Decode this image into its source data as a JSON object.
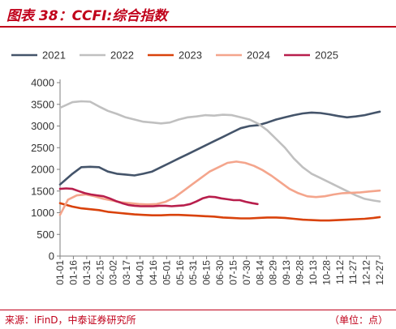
{
  "header": {
    "title": "图表 38：CCFI:综合指数"
  },
  "footer": {
    "source": "来源：iFinD，中泰证券研究所",
    "unit": "（单位：点）"
  },
  "chart_data": {
    "type": "line",
    "title": "CCFI:综合指数",
    "ylim": [
      0,
      4000
    ],
    "yticks": [
      0,
      500,
      1000,
      1500,
      2000,
      2500,
      3000,
      3500,
      4000
    ],
    "x_tick_labels": [
      "01-01",
      "01-16",
      "01-31",
      "02-15",
      "03-02",
      "03-17",
      "04-01",
      "04-16",
      "05-01",
      "05-16",
      "05-31",
      "06-15",
      "06-30",
      "07-15",
      "07-30",
      "08-14",
      "08-29",
      "09-13",
      "09-28",
      "10-13",
      "10-28",
      "11-12",
      "11-27",
      "12-12",
      "12-27"
    ],
    "x_unit": "day of year (1 = Jan 1)",
    "grid": false,
    "legend_position": "top",
    "series": [
      {
        "name": "2021",
        "color": "#44546a",
        "x": [
          1,
          15,
          25,
          35,
          45,
          55,
          65,
          75,
          85,
          95,
          105,
          115,
          125,
          135,
          145,
          155,
          165,
          175,
          185,
          195,
          205,
          215,
          225,
          235,
          245,
          255,
          265,
          275,
          285,
          295,
          305,
          315,
          325,
          335,
          345,
          355,
          362
        ],
        "y": [
          1650,
          1900,
          2050,
          2060,
          2050,
          1950,
          1900,
          1880,
          1860,
          1900,
          1950,
          2050,
          2150,
          2250,
          2350,
          2450,
          2550,
          2650,
          2750,
          2850,
          2950,
          3000,
          3020,
          3080,
          3150,
          3200,
          3250,
          3290,
          3310,
          3300,
          3270,
          3230,
          3200,
          3220,
          3250,
          3300,
          3330
        ]
      },
      {
        "name": "2022",
        "color": "#c0c0c0",
        "x": [
          1,
          15,
          25,
          35,
          45,
          55,
          65,
          75,
          85,
          95,
          105,
          115,
          125,
          135,
          145,
          155,
          165,
          175,
          185,
          195,
          205,
          215,
          225,
          235,
          245,
          255,
          265,
          275,
          285,
          295,
          305,
          315,
          325,
          335,
          345,
          355,
          362
        ],
        "y": [
          3420,
          3550,
          3570,
          3560,
          3450,
          3350,
          3280,
          3200,
          3150,
          3100,
          3080,
          3060,
          3080,
          3150,
          3200,
          3220,
          3250,
          3240,
          3260,
          3250,
          3200,
          3150,
          3050,
          2900,
          2700,
          2500,
          2250,
          2050,
          1900,
          1800,
          1700,
          1600,
          1500,
          1400,
          1320,
          1280,
          1260
        ]
      },
      {
        "name": "2023",
        "color": "#d9420b",
        "x": [
          1,
          15,
          25,
          35,
          45,
          55,
          65,
          75,
          85,
          95,
          105,
          115,
          125,
          135,
          145,
          155,
          165,
          175,
          185,
          195,
          205,
          215,
          225,
          235,
          245,
          255,
          265,
          275,
          285,
          295,
          305,
          315,
          325,
          335,
          345,
          355,
          362
        ],
        "y": [
          1220,
          1140,
          1100,
          1080,
          1060,
          1020,
          1000,
          980,
          960,
          950,
          940,
          940,
          950,
          950,
          940,
          930,
          920,
          910,
          890,
          880,
          870,
          870,
          880,
          890,
          890,
          880,
          860,
          840,
          830,
          820,
          820,
          830,
          840,
          850,
          860,
          880,
          900
        ]
      },
      {
        "name": "2024",
        "color": "#f4a58c",
        "x": [
          1,
          10,
          20,
          30,
          40,
          50,
          60,
          70,
          80,
          90,
          100,
          110,
          120,
          130,
          140,
          150,
          160,
          170,
          180,
          190,
          200,
          210,
          220,
          230,
          240,
          250,
          260,
          270,
          280,
          290,
          300,
          310,
          320,
          330,
          340,
          350,
          362
        ],
        "y": [
          950,
          1300,
          1400,
          1420,
          1380,
          1320,
          1280,
          1240,
          1220,
          1200,
          1190,
          1200,
          1250,
          1350,
          1500,
          1650,
          1800,
          1950,
          2050,
          2150,
          2180,
          2150,
          2080,
          1980,
          1850,
          1700,
          1550,
          1450,
          1380,
          1360,
          1380,
          1420,
          1450,
          1460,
          1470,
          1490,
          1510
        ]
      },
      {
        "name": "2025",
        "color": "#b81e4c",
        "x": [
          1,
          8,
          15,
          22,
          29,
          36,
          43,
          50,
          57,
          64,
          71,
          78,
          85,
          92,
          99,
          106,
          113,
          120,
          127,
          134,
          141,
          148,
          155,
          162,
          169,
          176,
          183,
          190,
          197,
          204,
          211,
          218,
          224
        ],
        "y": [
          1550,
          1560,
          1550,
          1500,
          1450,
          1420,
          1400,
          1380,
          1330,
          1270,
          1220,
          1180,
          1160,
          1150,
          1150,
          1150,
          1160,
          1160,
          1150,
          1160,
          1170,
          1200,
          1260,
          1330,
          1370,
          1360,
          1330,
          1310,
          1290,
          1290,
          1250,
          1220,
          1200
        ]
      }
    ]
  }
}
